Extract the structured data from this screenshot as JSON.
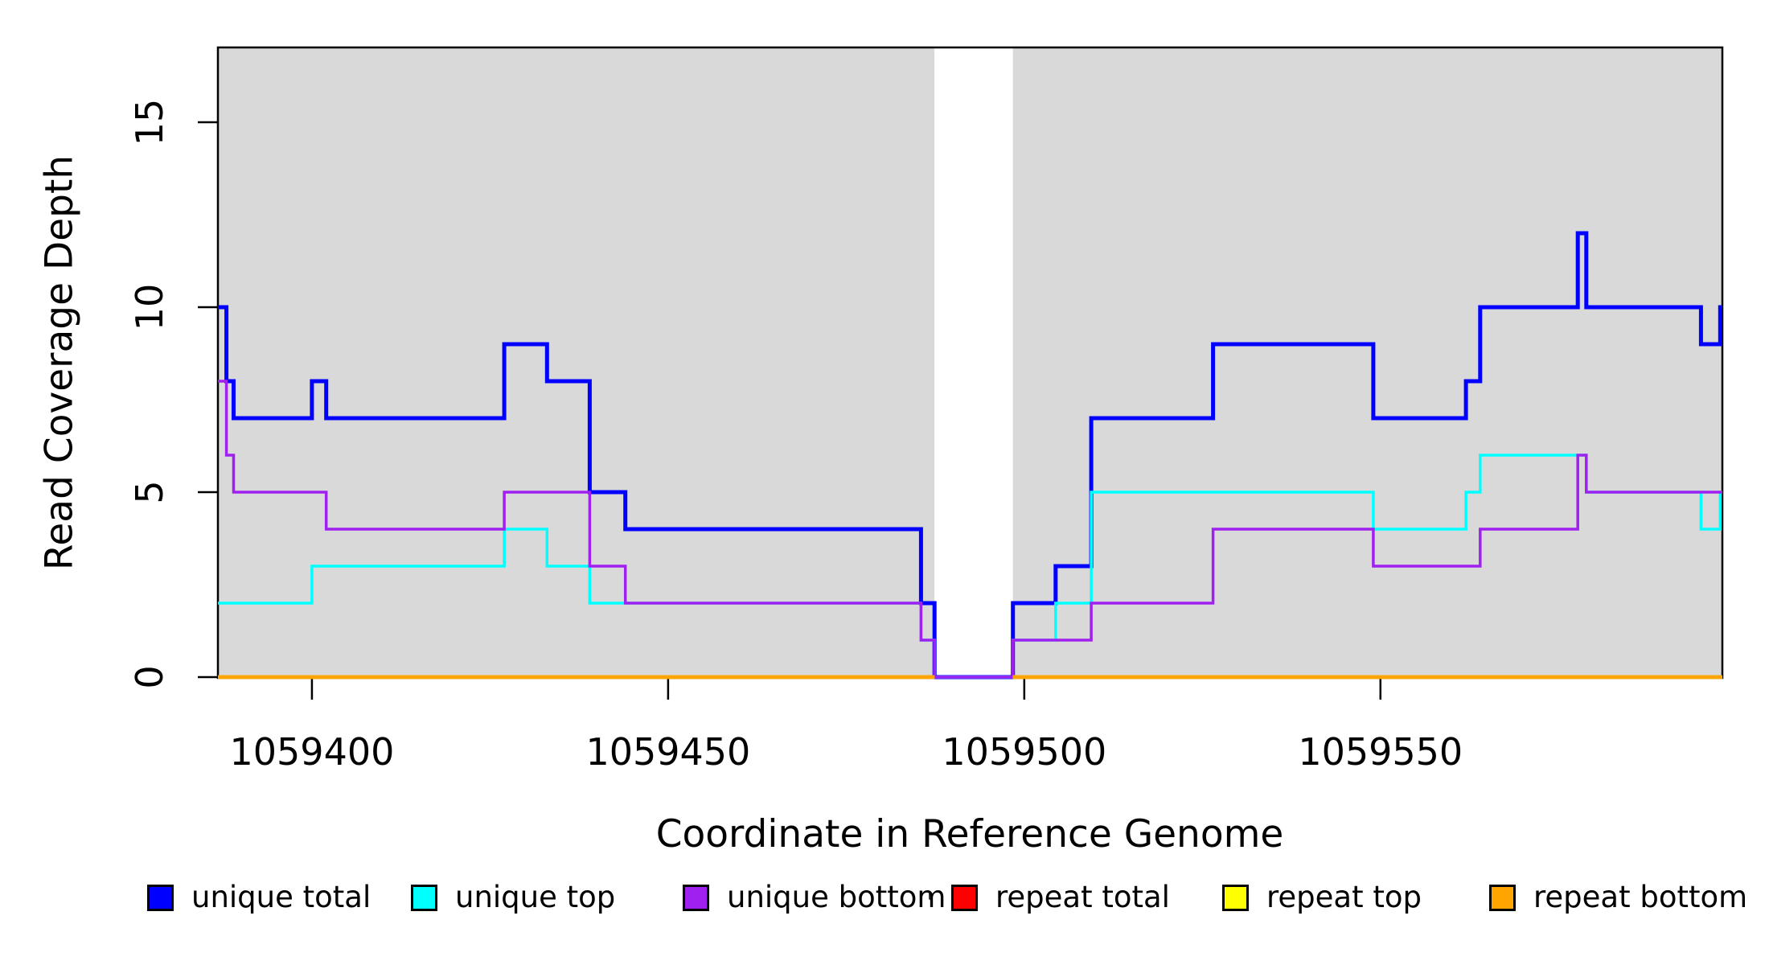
{
  "y_axis": {
    "label": "Read Coverage Depth",
    "ticks": [
      "0",
      "5",
      "10",
      "15"
    ],
    "tick_values": [
      0,
      5,
      10,
      15
    ]
  },
  "x_axis": {
    "label": "Coordinate in Reference Genome",
    "ticks": [
      "1059400",
      "1059450",
      "1059500",
      "1059550"
    ],
    "tick_values": [
      1059400,
      1059450,
      1059500,
      1059550
    ]
  },
  "legend": {
    "items": [
      {
        "label": "unique total",
        "color": "#0000FF"
      },
      {
        "label": "unique top",
        "color": "#00FFFF"
      },
      {
        "label": "unique bottom",
        "color": "#A020F0"
      },
      {
        "label": "repeat total",
        "color": "#FF0000"
      },
      {
        "label": "repeat top",
        "color": "#FFFF00"
      },
      {
        "label": "repeat bottom",
        "color": "#FFA500"
      }
    ]
  },
  "chart_data": {
    "type": "line",
    "title": "",
    "xlabel": "Coordinate in Reference Genome",
    "ylabel": "Read Coverage Depth",
    "x_range": [
      1059386.8,
      1059598
    ],
    "ylim": [
      0,
      17
    ],
    "x_ticks": [
      1059400,
      1059450,
      1059500,
      1059550
    ],
    "y_ticks": [
      0,
      5,
      10,
      15
    ],
    "grid": false,
    "legend_position": "bottom",
    "plot_background_color": "#D9D9D9",
    "gap_region": {
      "x_start": 1059487.4,
      "x_end": 1059498.4,
      "color": "#FFFFFF"
    },
    "step_mode": "after",
    "series": [
      {
        "name": "unique total",
        "color": "#0000FF",
        "stroke_width": 5,
        "points": [
          [
            1059386.8,
            10
          ],
          [
            1059388,
            8
          ],
          [
            1059389,
            7
          ],
          [
            1059400,
            8
          ],
          [
            1059402,
            7
          ],
          [
            1059427,
            9
          ],
          [
            1059433,
            8
          ],
          [
            1059439,
            5
          ],
          [
            1059444,
            4
          ],
          [
            1059485.5,
            2
          ],
          [
            1059487.4,
            0
          ],
          [
            1059498.4,
            2
          ],
          [
            1059504.4,
            3
          ],
          [
            1059509.4,
            7
          ],
          [
            1059526.5,
            9
          ],
          [
            1059549,
            7
          ],
          [
            1059562,
            8
          ],
          [
            1059564,
            10
          ],
          [
            1059577.7,
            12
          ],
          [
            1059578.9,
            10
          ],
          [
            1059595,
            9
          ],
          [
            1059597.7,
            10
          ],
          [
            1059598,
            10
          ]
        ]
      },
      {
        "name": "unique top",
        "color": "#00FFFF",
        "stroke_width": 3.5,
        "points": [
          [
            1059386.8,
            2
          ],
          [
            1059400,
            3
          ],
          [
            1059427,
            4
          ],
          [
            1059433,
            3
          ],
          [
            1059439,
            2
          ],
          [
            1059485.5,
            1
          ],
          [
            1059487.4,
            0
          ],
          [
            1059498.4,
            1
          ],
          [
            1059504.4,
            2
          ],
          [
            1059509.4,
            5
          ],
          [
            1059549,
            4
          ],
          [
            1059562,
            5
          ],
          [
            1059564,
            6
          ],
          [
            1059578.9,
            5
          ],
          [
            1059595,
            4
          ],
          [
            1059597.7,
            5
          ],
          [
            1059598,
            5
          ]
        ]
      },
      {
        "name": "unique bottom",
        "color": "#A020F0",
        "stroke_width": 3.5,
        "points": [
          [
            1059386.8,
            8
          ],
          [
            1059388,
            6
          ],
          [
            1059389,
            5
          ],
          [
            1059402,
            4
          ],
          [
            1059427,
            5
          ],
          [
            1059439,
            3
          ],
          [
            1059444,
            2
          ],
          [
            1059485.5,
            1
          ],
          [
            1059487.4,
            0
          ],
          [
            1059498.4,
            1
          ],
          [
            1059509.4,
            2
          ],
          [
            1059526.5,
            4
          ],
          [
            1059549,
            3
          ],
          [
            1059564,
            4
          ],
          [
            1059577.7,
            6
          ],
          [
            1059578.9,
            5
          ],
          [
            1059598,
            5
          ]
        ]
      },
      {
        "name": "repeat total",
        "color": "#FF0000",
        "stroke_width": 4.5,
        "value": 0,
        "segments": [
          [
            1059386.8,
            1059487.4
          ],
          [
            1059498.4,
            1059598
          ]
        ]
      },
      {
        "name": "repeat top",
        "color": "#FFFF00",
        "stroke_width": 4.5,
        "value": 0,
        "segments": [
          [
            1059386.8,
            1059487.4
          ],
          [
            1059498.4,
            1059598
          ]
        ]
      },
      {
        "name": "repeat bottom",
        "color": "#FFA500",
        "stroke_width": 4.5,
        "value": 0,
        "segments": [
          [
            1059386.8,
            1059487.4
          ],
          [
            1059498.4,
            1059598
          ]
        ]
      }
    ]
  }
}
